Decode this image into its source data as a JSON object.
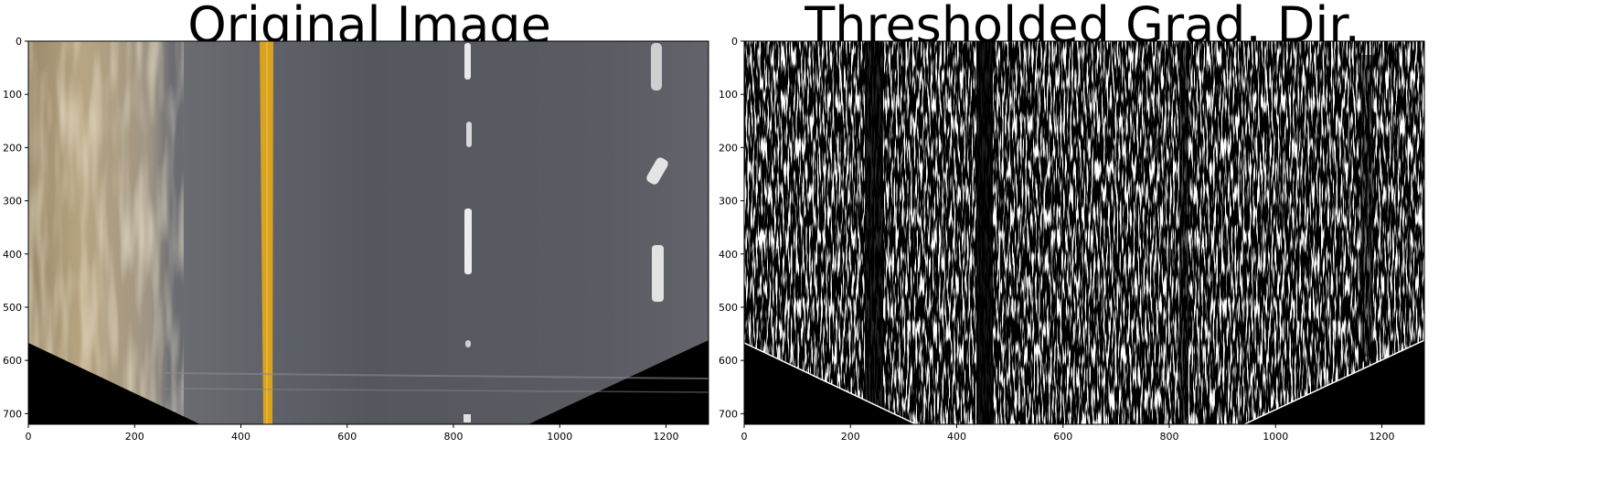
{
  "panels": [
    {
      "title": "Original Image",
      "x_ticks": [
        "0",
        "200",
        "400",
        "600",
        "800",
        "1000",
        "1200"
      ],
      "y_ticks": [
        "0",
        "100",
        "200",
        "300",
        "400",
        "500",
        "600",
        "700"
      ]
    },
    {
      "title": "Thresholded Grad. Dir.",
      "x_ticks": [
        "0",
        "200",
        "400",
        "600",
        "800",
        "1000",
        "1200"
      ],
      "y_ticks": [
        "0",
        "100",
        "200",
        "300",
        "400",
        "500",
        "600",
        "700"
      ]
    }
  ],
  "image_extent": {
    "width": 1280,
    "height": 720
  },
  "colors": {
    "asphalt": "#55575f",
    "shoulder": "#a89a7e",
    "yellow_line": "#d9a21f",
    "white_line": "#e8e8e8",
    "black": "#000000",
    "white": "#ffffff"
  }
}
